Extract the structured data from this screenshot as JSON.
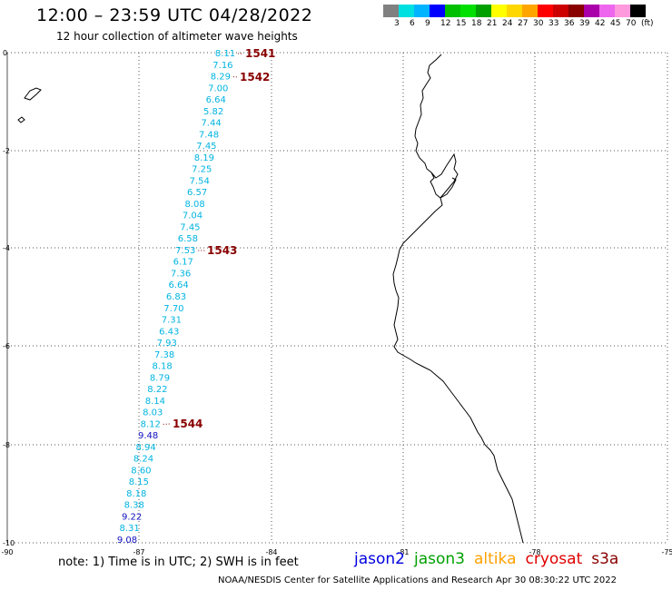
{
  "header": {
    "title": "12:00 – 23:59 UTC 04/28/2022",
    "subtitle": "12 hour collection of altimeter wave heights"
  },
  "colorbar": {
    "colors": [
      "#808080",
      "#00e0e0",
      "#00b4ff",
      "#0000ff",
      "#00c000",
      "#00e000",
      "#00a000",
      "#ffff00",
      "#ffd700",
      "#ffa500",
      "#ff0000",
      "#cc0000",
      "#880000",
      "#aa00aa",
      "#ee66ee",
      "#ff99dd",
      "#000000"
    ],
    "labels": [
      "3",
      "6",
      "9",
      "12",
      "15",
      "18",
      "21",
      "24",
      "27",
      "30",
      "33",
      "36",
      "39",
      "42",
      "45",
      "70",
      "(ft)"
    ]
  },
  "axes": {
    "x_ticks": [
      "-90",
      "-87",
      "-84",
      "-81",
      "-78",
      "-75"
    ],
    "y_ticks": [
      "0",
      "-2",
      "-4",
      "-6",
      "-8",
      "-10"
    ]
  },
  "track_labels": [
    "1541",
    "1542",
    "1543",
    "1544"
  ],
  "wave_heights": [
    {
      "v": "8.11",
      "color": "#00b4e0"
    },
    {
      "v": "7.16",
      "color": "#00b4e0"
    },
    {
      "v": "8.29",
      "color": "#00b4e0"
    },
    {
      "v": "7.00",
      "color": "#00b4e0"
    },
    {
      "v": "6.64",
      "color": "#00b4e0"
    },
    {
      "v": "5.82",
      "color": "#00b4e0"
    },
    {
      "v": "7.44",
      "color": "#00b4e0"
    },
    {
      "v": "7.48",
      "color": "#00b4e0"
    },
    {
      "v": "7.45",
      "color": "#00b4e0"
    },
    {
      "v": "8.19",
      "color": "#00b4e0"
    },
    {
      "v": "7.25",
      "color": "#00b4e0"
    },
    {
      "v": "7.54",
      "color": "#00b4e0"
    },
    {
      "v": "6.57",
      "color": "#00b4e0"
    },
    {
      "v": "8.08",
      "color": "#00b4e0"
    },
    {
      "v": "7.04",
      "color": "#00b4e0"
    },
    {
      "v": "7.45",
      "color": "#00b4e0"
    },
    {
      "v": "6.58",
      "color": "#00b4e0"
    },
    {
      "v": "7.53",
      "color": "#00b4e0"
    },
    {
      "v": "6.17",
      "color": "#00b4e0"
    },
    {
      "v": "7.36",
      "color": "#00b4e0"
    },
    {
      "v": "6.64",
      "color": "#00b4e0"
    },
    {
      "v": "6.83",
      "color": "#00b4e0"
    },
    {
      "v": "7.70",
      "color": "#00b4e0"
    },
    {
      "v": "7.31",
      "color": "#00b4e0"
    },
    {
      "v": "6.43",
      "color": "#00b4e0"
    },
    {
      "v": "7.93",
      "color": "#00b4e0"
    },
    {
      "v": "7.38",
      "color": "#00b4e0"
    },
    {
      "v": "8.18",
      "color": "#00b4e0"
    },
    {
      "v": "8.79",
      "color": "#00b4e0"
    },
    {
      "v": "8.22",
      "color": "#00b4e0"
    },
    {
      "v": "8.14",
      "color": "#00b4e0"
    },
    {
      "v": "8.03",
      "color": "#00b4e0"
    },
    {
      "v": "8.12",
      "color": "#00b4e0"
    },
    {
      "v": "9.48",
      "color": "#1010c0"
    },
    {
      "v": "8.94",
      "color": "#00b4e0"
    },
    {
      "v": "8.24",
      "color": "#00b4e0"
    },
    {
      "v": "8.60",
      "color": "#00b4e0"
    },
    {
      "v": "8.15",
      "color": "#00b4e0"
    },
    {
      "v": "8.18",
      "color": "#00b4e0"
    },
    {
      "v": "8.38",
      "color": "#00b4e0"
    },
    {
      "v": "9.22",
      "color": "#1010c0"
    },
    {
      "v": "8.31",
      "color": "#00b4e0"
    },
    {
      "v": "9.08",
      "color": "#1010c0"
    }
  ],
  "note": "note:  1) Time is in UTC;  2) SWH is in feet",
  "satellites": [
    {
      "name": "jason2",
      "color": "#0000e0"
    },
    {
      "name": "jason3",
      "color": "#00a000"
    },
    {
      "name": "altika",
      "color": "#ffa000"
    },
    {
      "name": "cryosat",
      "color": "#e00000"
    },
    {
      "name": "s3a",
      "color": "#880000"
    }
  ],
  "footer": "NOAA/NESDIS Center for Satellite Applications and Research    Apr 30 08:30:22 UTC 2022"
}
